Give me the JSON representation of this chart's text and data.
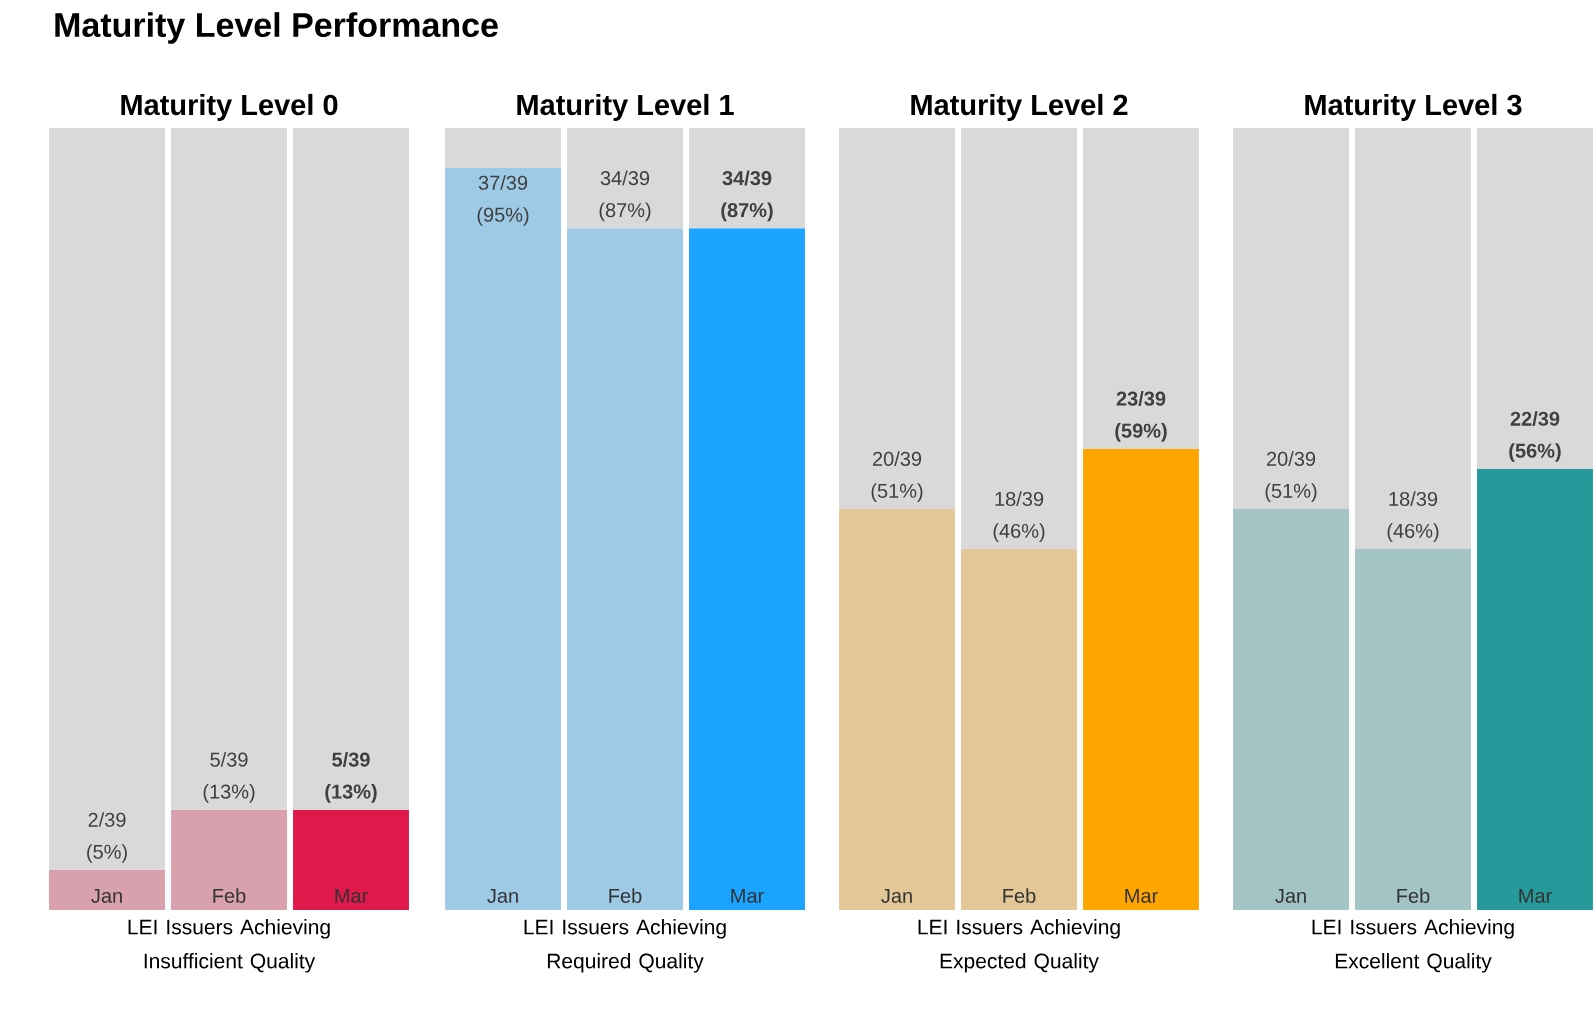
{
  "chart_data": [
    {
      "type": "bar",
      "stacked": true,
      "title": "Maturity Level 0",
      "xlabel": "LEI Issuers Achieving Insufficient Quality",
      "annotations": [
        "Maturity Level Performance"
      ],
      "categories": [
        "Jan",
        "Feb",
        "Mar"
      ],
      "ylim": [
        0,
        39
      ],
      "series": [
        {
          "colors": [
            "#d9a0ad",
            "#d9a0ad",
            "#e0194b"
          ],
          "values": [
            2,
            5,
            5
          ],
          "value_labels": [
            "2/39 (5%)",
            "5/39 (13%)",
            "**5/39 (13%)**"
          ]
        },
        {
          "color": "#d9d9d9",
          "values": [
            37,
            34,
            34
          ]
        }
      ]
    },
    {
      "type": "bar",
      "stacked": true,
      "title": "Maturity Level 1",
      "xlabel": "LEI Issuers Achieving Required Quality",
      "categories": [
        "Jan",
        "Feb",
        "Mar"
      ],
      "ylim": [
        0,
        39
      ],
      "series": [
        {
          "colors": [
            "#9ecae6",
            "#9ecae6",
            "#1aa3ff"
          ],
          "values": [
            37,
            34,
            34
          ],
          "value_labels": [
            "37/39 (95%)",
            "34/39 (87%)",
            "**34/39 (87%)**"
          ]
        },
        {
          "color": "#d9d9d9",
          "values": [
            2,
            5,
            5
          ]
        }
      ]
    },
    {
      "type": "bar",
      "stacked": true,
      "title": "Maturity Level 2",
      "xlabel": "LEI Issuers Achieving Expected Quality",
      "categories": [
        "Jan",
        "Feb",
        "Mar"
      ],
      "ylim": [
        0,
        39
      ],
      "series": [
        {
          "colors": [
            "#e3c796",
            "#e3c796",
            "#ffa500"
          ],
          "values": [
            20,
            18,
            23
          ],
          "value_labels": [
            "20/39 (51%)",
            "18/39 (46%)",
            "**23/39 (59%)**"
          ]
        },
        {
          "color": "#d9d9d9",
          "values": [
            19,
            21,
            16
          ]
        }
      ]
    },
    {
      "type": "bar",
      "stacked": true,
      "title": "Maturity Level 3",
      "xlabel": "LEI Issuers Achieving Excellent Quality",
      "categories": [
        "Jan",
        "Feb",
        "Mar"
      ],
      "ylim": [
        0,
        39
      ],
      "series": [
        {
          "colors": [
            "#a3c4c4",
            "#a3c4c4",
            "#26999a"
          ],
          "values": [
            20,
            18,
            22
          ],
          "value_labels": [
            "20/39 (51%)",
            "18/39 (46%)",
            "**22/39 (56%)**"
          ]
        },
        {
          "color": "#d9d9d9",
          "values": [
            19,
            21,
            17
          ]
        }
      ]
    }
  ]
}
